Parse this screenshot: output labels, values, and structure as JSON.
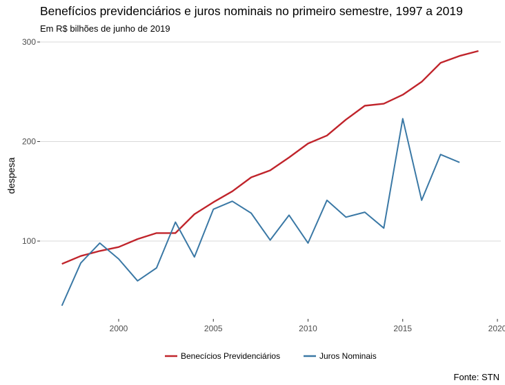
{
  "chart_data": {
    "type": "line",
    "title": "Benefícios previdenciários e juros nominais no primeiro semestre, 1997 a 2019",
    "subtitle": "Em R$ bilhões de junho de 2019",
    "caption": "Fonte: STN",
    "xlabel": "",
    "ylabel": "despesa",
    "xlim": [
      1996.3,
      2020
    ],
    "ylim": [
      30,
      300
    ],
    "xticks": [
      2000,
      2005,
      2010,
      2015,
      2020
    ],
    "yticks": [
      100,
      200,
      300
    ],
    "grid": true,
    "legend_position": "bottom",
    "series": [
      {
        "name": "Benecícios Previdenciários",
        "color": "#c0242b",
        "x": [
          1997,
          1998,
          1999,
          2000,
          2001,
          2002,
          2003,
          2004,
          2005,
          2006,
          2007,
          2008,
          2009,
          2010,
          2011,
          2012,
          2013,
          2014,
          2015,
          2016,
          2017,
          2018,
          2019
        ],
        "values": [
          77,
          85,
          90,
          94,
          102,
          108,
          108,
          127,
          139,
          150,
          164,
          171,
          184,
          198,
          206,
          222,
          236,
          238,
          247,
          260,
          279,
          286,
          291
        ]
      },
      {
        "name": "Juros Nominais",
        "color": "#3a78a5",
        "x": [
          1997,
          1998,
          1999,
          2000,
          2001,
          2002,
          2003,
          2004,
          2005,
          2006,
          2007,
          2008,
          2009,
          2010,
          2011,
          2012,
          2013,
          2014,
          2015,
          2016,
          2017,
          2018
        ],
        "values": [
          35,
          78,
          98,
          82,
          60,
          73,
          119,
          84,
          132,
          140,
          128,
          101,
          126,
          98,
          141,
          124,
          129,
          113,
          223,
          141,
          187,
          179
        ]
      }
    ]
  }
}
